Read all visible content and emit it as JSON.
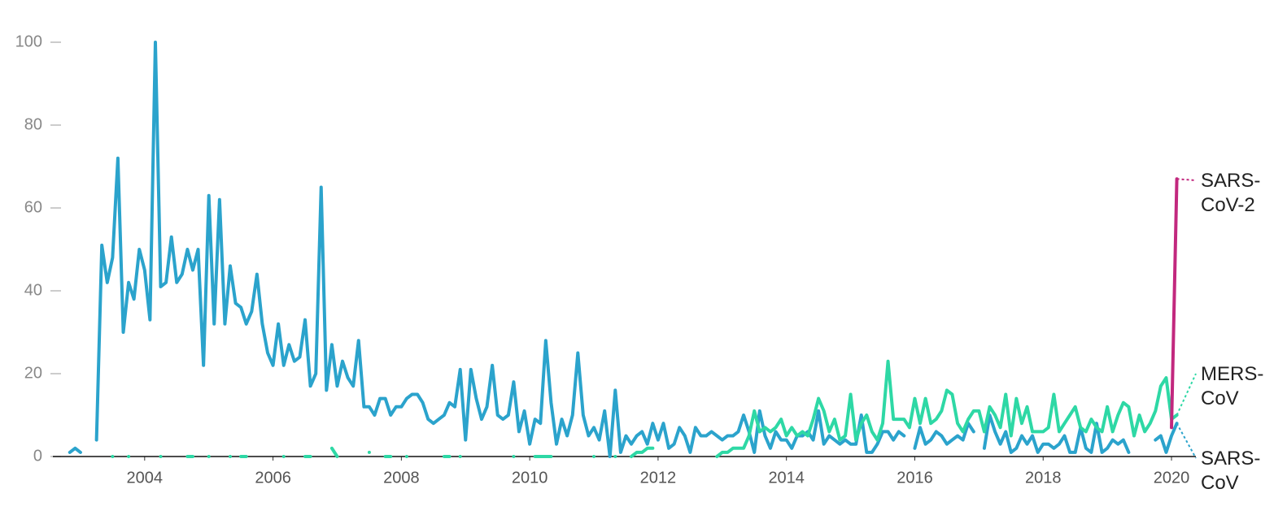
{
  "chart_data": {
    "type": "line",
    "x": [
      2002.833,
      2002.917,
      2003,
      2003.083,
      2003.167,
      2003.25,
      2003.333,
      2003.417,
      2003.5,
      2003.583,
      2003.667,
      2003.75,
      2003.833,
      2003.917,
      2004,
      2004.083,
      2004.167,
      2004.25,
      2004.333,
      2004.417,
      2004.5,
      2004.583,
      2004.667,
      2004.75,
      2004.833,
      2004.917,
      2005,
      2005.083,
      2005.167,
      2005.25,
      2005.333,
      2005.417,
      2005.5,
      2005.583,
      2005.667,
      2005.75,
      2005.833,
      2005.917,
      2006,
      2006.083,
      2006.167,
      2006.25,
      2006.333,
      2006.417,
      2006.5,
      2006.583,
      2006.667,
      2006.75,
      2006.833,
      2006.917,
      2007,
      2007.083,
      2007.167,
      2007.25,
      2007.333,
      2007.417,
      2007.5,
      2007.583,
      2007.667,
      2007.75,
      2007.833,
      2007.917,
      2008,
      2008.083,
      2008.167,
      2008.25,
      2008.333,
      2008.417,
      2008.5,
      2008.583,
      2008.667,
      2008.75,
      2008.833,
      2008.917,
      2009,
      2009.083,
      2009.167,
      2009.25,
      2009.333,
      2009.417,
      2009.5,
      2009.583,
      2009.667,
      2009.75,
      2009.833,
      2009.917,
      2010,
      2010.083,
      2010.167,
      2010.25,
      2010.333,
      2010.417,
      2010.5,
      2010.583,
      2010.667,
      2010.75,
      2010.833,
      2010.917,
      2011,
      2011.083,
      2011.167,
      2011.25,
      2011.333,
      2011.417,
      2011.5,
      2011.583,
      2011.667,
      2011.75,
      2011.833,
      2011.917,
      2012,
      2012.083,
      2012.167,
      2012.25,
      2012.333,
      2012.417,
      2012.5,
      2012.583,
      2012.667,
      2012.75,
      2012.833,
      2012.917,
      2013,
      2013.083,
      2013.167,
      2013.25,
      2013.333,
      2013.417,
      2013.5,
      2013.583,
      2013.667,
      2013.75,
      2013.833,
      2013.917,
      2014,
      2014.083,
      2014.167,
      2014.25,
      2014.333,
      2014.417,
      2014.5,
      2014.583,
      2014.667,
      2014.75,
      2014.833,
      2014.917,
      2015,
      2015.083,
      2015.167,
      2015.25,
      2015.333,
      2015.417,
      2015.5,
      2015.583,
      2015.667,
      2015.75,
      2015.833,
      2015.917,
      2016,
      2016.083,
      2016.167,
      2016.25,
      2016.333,
      2016.417,
      2016.5,
      2016.583,
      2016.667,
      2016.75,
      2016.833,
      2016.917,
      2017,
      2017.083,
      2017.167,
      2017.25,
      2017.333,
      2017.417,
      2017.5,
      2017.583,
      2017.667,
      2017.75,
      2017.833,
      2017.917,
      2018,
      2018.083,
      2018.167,
      2018.25,
      2018.333,
      2018.417,
      2018.5,
      2018.583,
      2018.667,
      2018.75,
      2018.833,
      2018.917,
      2019,
      2019.083,
      2019.167,
      2019.25,
      2019.333,
      2019.417,
      2019.5,
      2019.583,
      2019.667,
      2019.75,
      2019.833,
      2019.917,
      2020,
      2020.083
    ],
    "series": [
      {
        "name": "SARS-CoV",
        "color": "#2ba3cc",
        "values": [
          1,
          2,
          1,
          null,
          null,
          4,
          51,
          42,
          48,
          72,
          30,
          42,
          38,
          50,
          45,
          33,
          100,
          41,
          42,
          53,
          42,
          44,
          50,
          45,
          50,
          22,
          63,
          32,
          62,
          32,
          46,
          37,
          36,
          32,
          35,
          44,
          32,
          25,
          22,
          32,
          22,
          27,
          23,
          24,
          33,
          17,
          20,
          65,
          16,
          27,
          17,
          23,
          19,
          17,
          28,
          12,
          12,
          10,
          14,
          14,
          10,
          12,
          12,
          14,
          15,
          15,
          13,
          9,
          8,
          9,
          10,
          13,
          12,
          21,
          4,
          21,
          14,
          9,
          12,
          22,
          10,
          9,
          10,
          18,
          6,
          11,
          3,
          9,
          8,
          28,
          13,
          3,
          9,
          5,
          10,
          25,
          10,
          5,
          7,
          4,
          11,
          0,
          16,
          1,
          5,
          3,
          5,
          6,
          3,
          8,
          4,
          8,
          2,
          3,
          7,
          5,
          1,
          7,
          5,
          5,
          6,
          5,
          4,
          5,
          5,
          6,
          10,
          6,
          1,
          11,
          5,
          2,
          6,
          4,
          4,
          2,
          5,
          5,
          6,
          4,
          11,
          3,
          5,
          4,
          3,
          4,
          3,
          3,
          10,
          1,
          1,
          3,
          6,
          6,
          4,
          6,
          5,
          null,
          2,
          7,
          3,
          4,
          6,
          5,
          3,
          4,
          5,
          4,
          8,
          6,
          null,
          2,
          10,
          6,
          3,
          6,
          1,
          2,
          5,
          3,
          5,
          1,
          3,
          3,
          2,
          3,
          5,
          1,
          1,
          7,
          2,
          1,
          8,
          1,
          2,
          4,
          3,
          4,
          1,
          null,
          null,
          null,
          null,
          4,
          5,
          1,
          5,
          8
        ]
      },
      {
        "name": "MERS-CoV",
        "color": "#2ed8a5",
        "values": [
          null,
          null,
          null,
          null,
          null,
          null,
          null,
          null,
          0,
          null,
          null,
          0,
          null,
          null,
          null,
          null,
          null,
          0,
          null,
          null,
          null,
          null,
          0,
          0,
          null,
          null,
          0,
          null,
          null,
          null,
          0,
          null,
          0,
          0,
          null,
          null,
          null,
          null,
          null,
          null,
          0,
          null,
          null,
          null,
          0,
          0,
          null,
          null,
          null,
          2,
          0,
          null,
          null,
          null,
          null,
          null,
          1,
          null,
          null,
          0,
          0,
          null,
          null,
          0,
          null,
          null,
          null,
          null,
          null,
          null,
          0,
          0,
          null,
          0,
          null,
          null,
          null,
          null,
          null,
          null,
          null,
          null,
          null,
          0,
          null,
          null,
          null,
          0,
          0,
          0,
          0,
          null,
          null,
          null,
          null,
          null,
          null,
          null,
          0,
          null,
          null,
          null,
          0,
          null,
          null,
          0,
          1,
          1,
          2,
          2,
          null,
          null,
          null,
          null,
          null,
          null,
          null,
          null,
          null,
          null,
          null,
          0,
          1,
          1,
          2,
          2,
          2,
          5,
          11,
          6,
          7,
          6,
          7,
          9,
          5,
          7,
          5,
          6,
          5,
          9,
          14,
          11,
          6,
          9,
          4,
          5,
          15,
          4,
          8,
          10,
          6,
          4,
          8,
          23,
          9,
          9,
          9,
          7,
          14,
          8,
          14,
          8,
          9,
          11,
          16,
          15,
          8,
          6,
          9,
          11,
          11,
          6,
          12,
          10,
          7,
          15,
          5,
          14,
          8,
          12,
          6,
          6,
          6,
          7,
          15,
          6,
          8,
          10,
          12,
          7,
          6,
          9,
          7,
          6,
          12,
          6,
          10,
          13,
          12,
          5,
          10,
          6,
          8,
          11,
          17,
          19,
          9,
          10
        ]
      },
      {
        "name": "SARS-CoV-2",
        "color": "#c2287e",
        "values": [
          null,
          null,
          null,
          null,
          null,
          null,
          null,
          null,
          null,
          null,
          null,
          null,
          null,
          null,
          null,
          null,
          null,
          null,
          null,
          null,
          null,
          null,
          null,
          null,
          null,
          null,
          null,
          null,
          null,
          null,
          null,
          null,
          null,
          null,
          null,
          null,
          null,
          null,
          null,
          null,
          null,
          null,
          null,
          null,
          null,
          null,
          null,
          null,
          null,
          null,
          null,
          null,
          null,
          null,
          null,
          null,
          null,
          null,
          null,
          null,
          null,
          null,
          null,
          null,
          null,
          null,
          null,
          null,
          null,
          null,
          null,
          null,
          null,
          null,
          null,
          null,
          null,
          null,
          null,
          null,
          null,
          null,
          null,
          null,
          null,
          null,
          null,
          null,
          null,
          null,
          null,
          null,
          null,
          null,
          null,
          null,
          null,
          null,
          null,
          null,
          null,
          null,
          null,
          null,
          null,
          null,
          null,
          null,
          null,
          null,
          null,
          null,
          null,
          null,
          null,
          null,
          null,
          null,
          null,
          null,
          null,
          null,
          null,
          null,
          null,
          null,
          null,
          null,
          null,
          null,
          null,
          null,
          null,
          null,
          null,
          null,
          null,
          null,
          null,
          null,
          null,
          null,
          null,
          null,
          null,
          null,
          null,
          null,
          null,
          null,
          null,
          null,
          null,
          null,
          null,
          null,
          null,
          null,
          null,
          null,
          null,
          null,
          null,
          null,
          null,
          null,
          null,
          null,
          null,
          null,
          null,
          null,
          null,
          null,
          null,
          null,
          null,
          null,
          null,
          null,
          null,
          null,
          null,
          null,
          null,
          null,
          null,
          null,
          null,
          null,
          null,
          null,
          null,
          null,
          null,
          null,
          null,
          null,
          null,
          null,
          null,
          null,
          null,
          null,
          null,
          null,
          7,
          67
        ]
      }
    ],
    "xlim": [
      2002.57,
      2020.38
    ],
    "xticks": [
      2004,
      2006,
      2008,
      2010,
      2012,
      2014,
      2016,
      2018,
      2020
    ],
    "ylim": [
      0,
      100
    ],
    "yticks": [
      0,
      20,
      40,
      60,
      80,
      100
    ]
  }
}
